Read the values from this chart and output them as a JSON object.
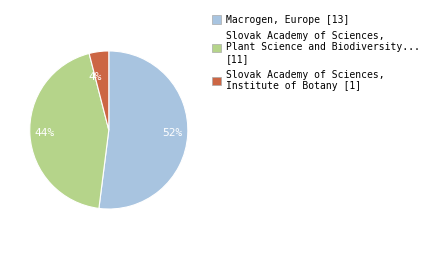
{
  "slices": [
    13,
    11,
    1
  ],
  "pct_labels": [
    "52%",
    "44%",
    "4%"
  ],
  "colors": [
    "#a8c4e0",
    "#b5d48a",
    "#cc6644"
  ],
  "legend_labels": [
    "Macrogen, Europe [13]",
    "Slovak Academy of Sciences,\nPlant Science and Biodiversity...\n[11]",
    "Slovak Academy of Sciences,\nInstitute of Botany [1]"
  ],
  "startangle": 90,
  "bg_color": "#ffffff",
  "text_color": "#ffffff",
  "font_size": 8,
  "legend_font_size": 7
}
